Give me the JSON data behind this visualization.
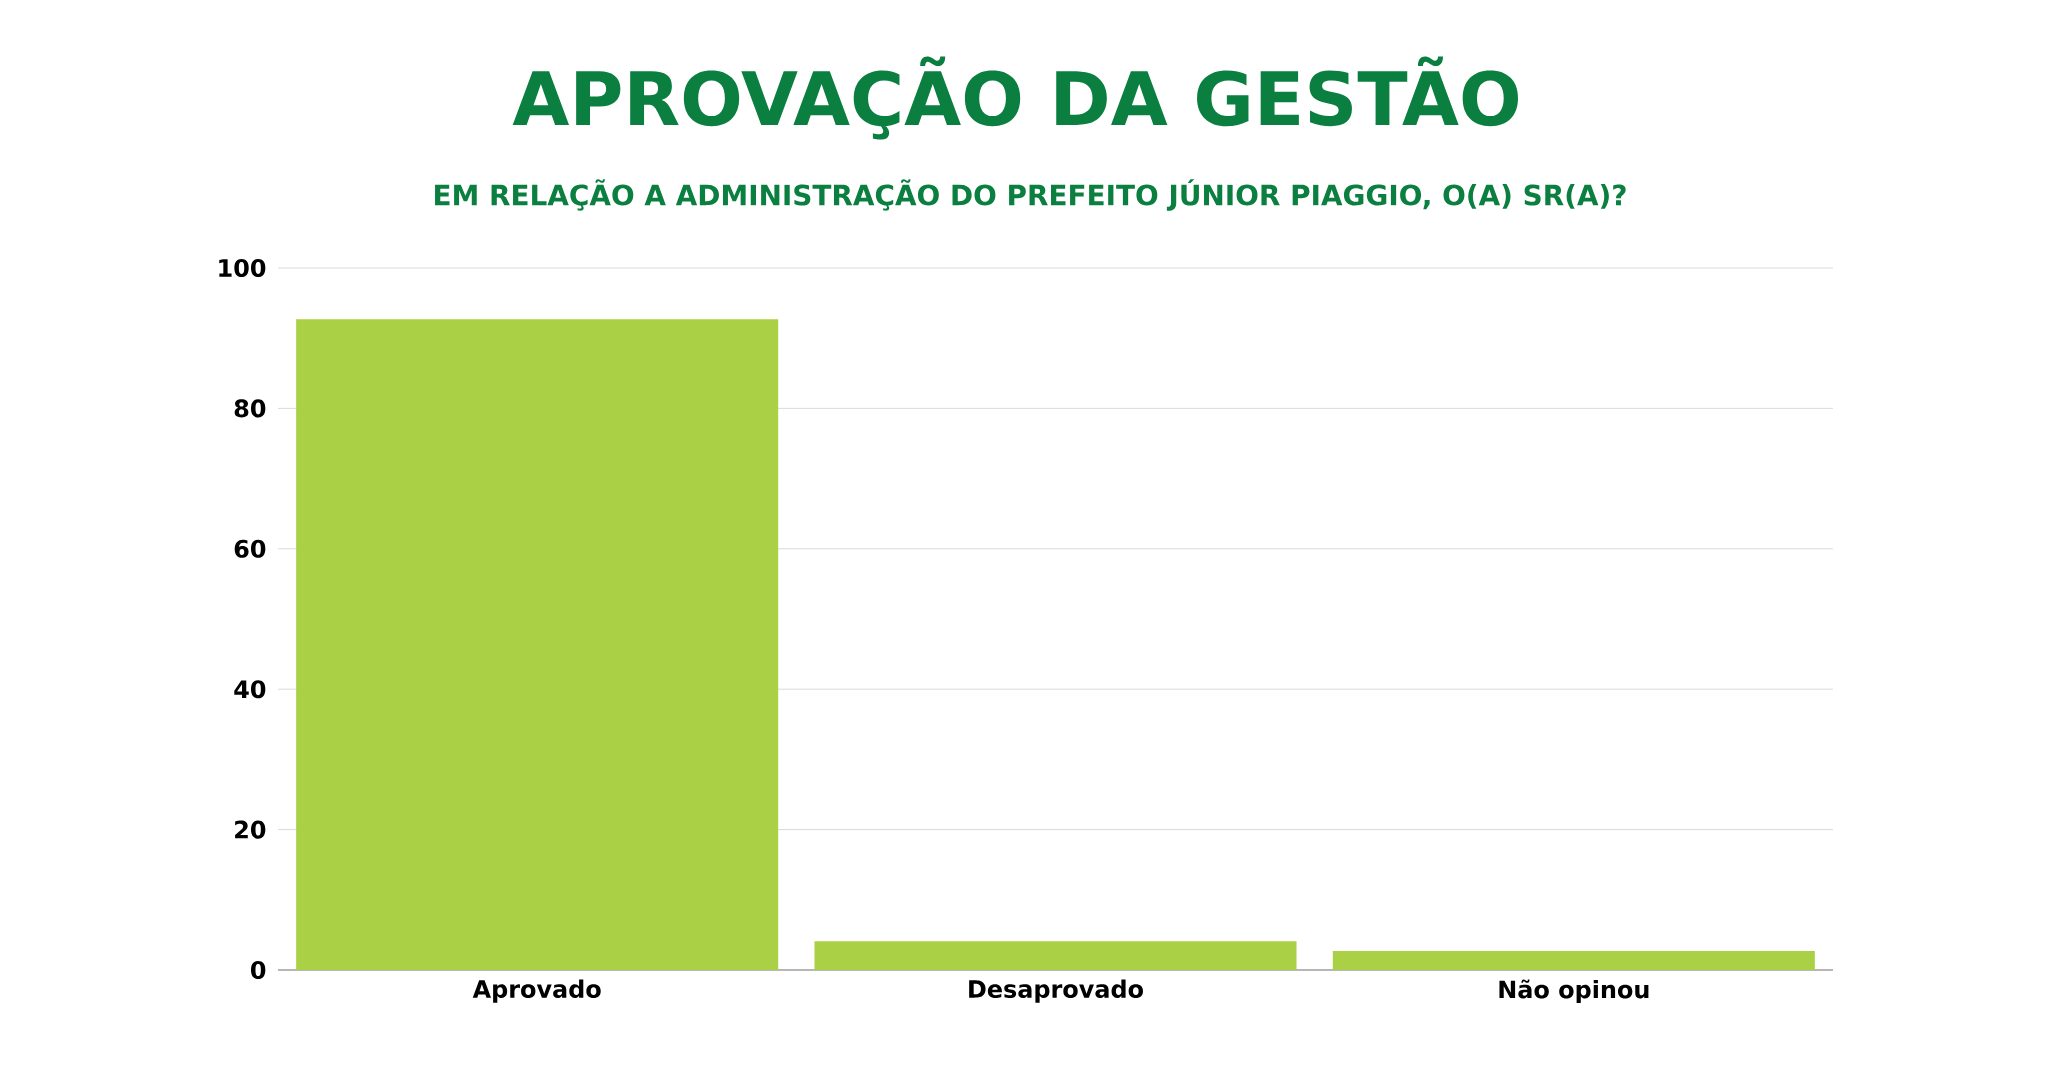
{
  "chart_data": {
    "type": "bar",
    "title": "APROVAÇÃO DA GESTÃO",
    "subtitle": "EM RELAÇÃO A ADMINISTRAÇÃO DO PREFEITO JÚNIOR PIAGGIO, O(A) SR(A)?",
    "categories": [
      "Aprovado",
      "Desaprovado",
      "Não opinou"
    ],
    "values": [
      92.7,
      4.1,
      2.7
    ],
    "color": "#aad145",
    "ylim": [
      0,
      100
    ],
    "yticks": [
      0,
      20,
      40,
      60,
      80,
      100
    ],
    "grid": "y"
  }
}
